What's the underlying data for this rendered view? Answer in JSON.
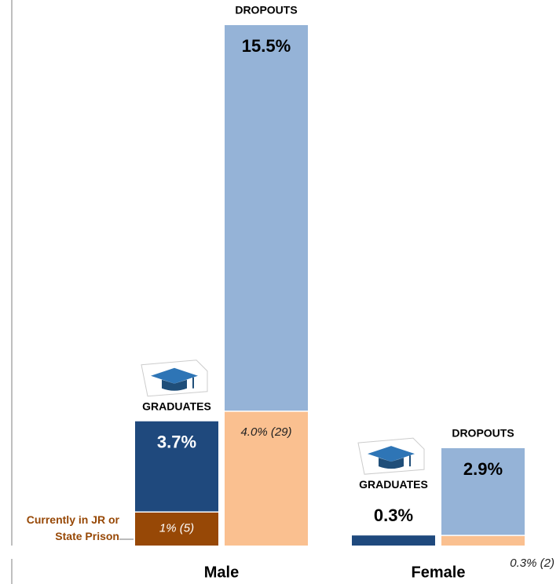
{
  "chart_data": {
    "type": "bar",
    "categories": [
      "Male",
      "Female"
    ],
    "series": [
      {
        "name": "GRADUATES",
        "color": "#1f497d",
        "values": [
          3.7,
          0.3
        ],
        "value_labels": [
          "3.7%",
          "0.3%"
        ]
      },
      {
        "name": "DROPOUTS",
        "color": "#95b3d7",
        "values": [
          15.5,
          2.9
        ],
        "value_labels": [
          "15.5%",
          "2.9%"
        ]
      }
    ],
    "in_prison": {
      "label": "Currently in JR or State Prison",
      "series": [
        {
          "color": "#974806",
          "values": [
            1,
            null
          ],
          "value_labels": [
            "1% (5)",
            null
          ]
        },
        {
          "color": "#fac090",
          "values": [
            4.0,
            0.3
          ],
          "value_labels": [
            "4.0% (29)",
            "0.3% (2)"
          ]
        }
      ]
    }
  }
}
